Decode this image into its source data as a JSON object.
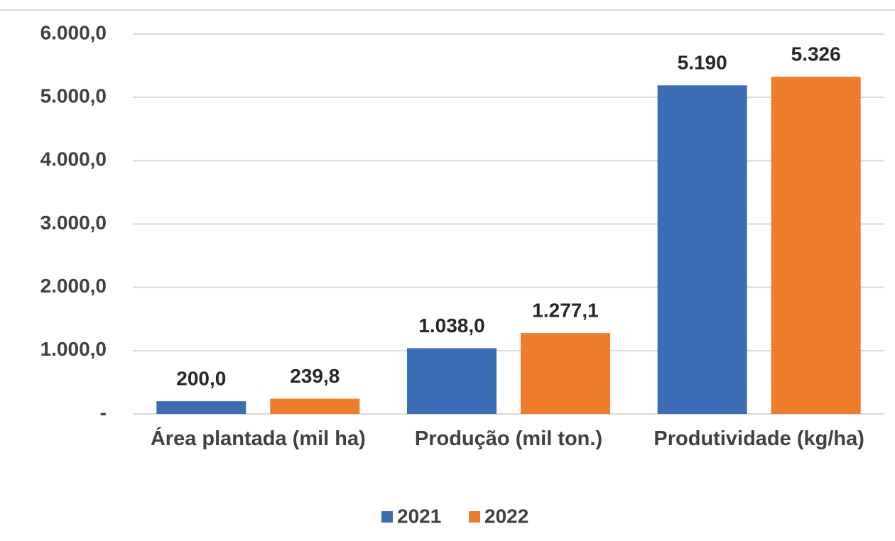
{
  "chart_data": {
    "type": "bar",
    "categories": [
      "Área plantada (mil ha)",
      "Produção (mil ton.)",
      "Produtividade (kg/ha)"
    ],
    "series": [
      {
        "name": "2021",
        "color": "#3b6db5",
        "values": [
          200.0,
          1038.0,
          5190
        ],
        "value_labels": [
          "200,0",
          "1.038,0",
          "5.190"
        ]
      },
      {
        "name": "2022",
        "color": "#ed7d2b",
        "values": [
          239.8,
          1277.1,
          5326
        ],
        "value_labels": [
          "239,8",
          "1.277,1",
          "5.326"
        ]
      }
    ],
    "ylim": [
      0,
      6000
    ],
    "yticks": [
      {
        "value": 0,
        "label": "-"
      },
      {
        "value": 1000,
        "label": "1.000,0"
      },
      {
        "value": 2000,
        "label": "2.000,0"
      },
      {
        "value": 3000,
        "label": "3.000,0"
      },
      {
        "value": 4000,
        "label": "4.000,0"
      },
      {
        "value": 5000,
        "label": "5.000,0"
      },
      {
        "value": 6000,
        "label": "6.000,0"
      }
    ],
    "grid": true,
    "legend": "bottom"
  }
}
